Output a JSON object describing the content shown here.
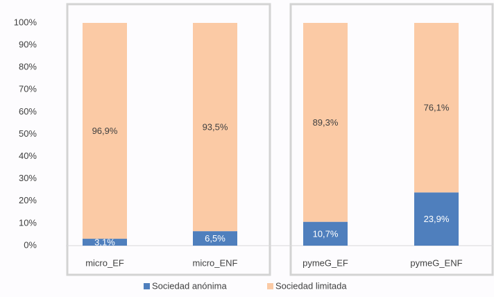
{
  "chart_data": {
    "type": "stacked_bar_100",
    "categories": [
      "micro_EF",
      "micro_ENF",
      "pymeG_EF",
      "pymeG_ENF"
    ],
    "series": [
      {
        "name": "Sociedad anónima",
        "color": "#4f7fbd",
        "values": [
          3.1,
          6.5,
          10.7,
          23.9
        ],
        "value_labels": [
          "3,1%",
          "6,5%",
          "10,7%",
          "23,9%"
        ]
      },
      {
        "name": "Sociedad limitada",
        "color": "#fbcaa5",
        "values": [
          96.9,
          93.5,
          89.3,
          76.1
        ],
        "value_labels": [
          "96,9%",
          "93,5%",
          "89,3%",
          "76,1%"
        ]
      }
    ],
    "ylim": [
      0,
      100
    ],
    "yticks": [
      {
        "value": 0,
        "label": "0%"
      },
      {
        "value": 10,
        "label": "10%"
      },
      {
        "value": 20,
        "label": "20%"
      },
      {
        "value": 30,
        "label": "30%"
      },
      {
        "value": 40,
        "label": "40%"
      },
      {
        "value": 50,
        "label": "50%"
      },
      {
        "value": 60,
        "label": "60%"
      },
      {
        "value": 70,
        "label": "70%"
      },
      {
        "value": 80,
        "label": "80%"
      },
      {
        "value": 90,
        "label": "90%"
      },
      {
        "value": 100,
        "label": "100%"
      }
    ],
    "grid": false,
    "legend": "bottom"
  }
}
